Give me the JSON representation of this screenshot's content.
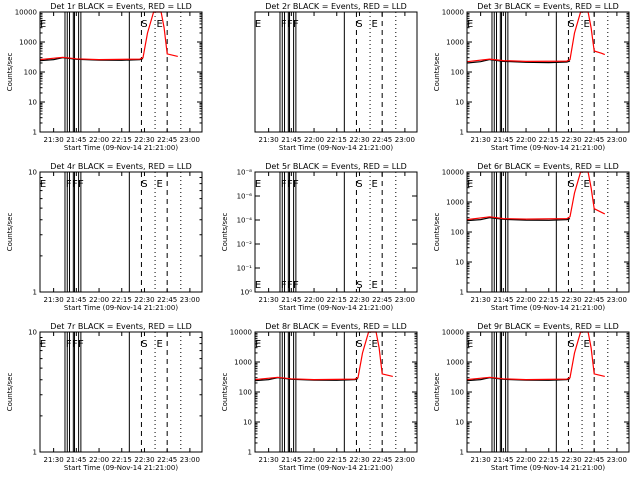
{
  "colors": {
    "events": "#000000",
    "lld": "#ff0000",
    "background": "#ffffff"
  },
  "xaxis": {
    "ticks": [
      "21:30",
      "21:45",
      "22:00",
      "22:15",
      "22:30",
      "22:45",
      "23:00"
    ],
    "tick_minutes": [
      1290,
      1305,
      1320,
      1335,
      1350,
      1365,
      1380
    ],
    "xlim_minutes": [
      1281,
      1388
    ],
    "label": "Start Time (09-Nov-14 21:21:00)"
  },
  "ylabel": "Counts/sec",
  "marker_lines": {
    "solid_minutes": [
      1297.5,
      1299,
      1300.5,
      1303,
      1303.8,
      1306.5,
      1308,
      1340
    ],
    "dashed_minutes": [
      1348,
      1365
    ],
    "dotted_minutes": [
      1357,
      1374
    ]
  },
  "flag_labels": {
    "six_letter": [
      {
        "text": "E",
        "minute": 1283
      },
      {
        "text": "F",
        "minute": 1300
      },
      {
        "text": "F",
        "minute": 1304
      },
      {
        "text": "F",
        "minute": 1308
      },
      {
        "text": "S",
        "minute": 1350
      },
      {
        "text": "E",
        "minute": 1360
      }
    ],
    "three_letter": [
      {
        "text": "E",
        "minute": 1283
      },
      {
        "text": "S",
        "minute": 1350
      },
      {
        "text": "E",
        "minute": 1360
      }
    ]
  },
  "chart_data": [
    {
      "type": "line",
      "title": "Det 1r BLACK = Events, RED = LLD",
      "layout": "log",
      "ylim": [
        1,
        10000
      ],
      "yticks": [
        {
          "v": 1,
          "t": "1"
        },
        {
          "v": 10,
          "t": "10"
        },
        {
          "v": 100,
          "t": "100"
        },
        {
          "v": 1000,
          "t": "1000"
        },
        {
          "v": 10000,
          "t": "10000"
        }
      ],
      "labels": "three_letter",
      "series": [
        {
          "name": "BLACK = Events",
          "x": [
            1281,
            1290,
            1296,
            1305,
            1320,
            1335,
            1347,
            1349
          ],
          "y": [
            240,
            260,
            300,
            265,
            250,
            245,
            260,
            280
          ]
        },
        {
          "name": "RED = LLD",
          "x": [
            1281,
            1296,
            1305,
            1320,
            1347,
            1349,
            1352,
            1356,
            1361,
            1363,
            1365,
            1370,
            1372
          ],
          "y": [
            260,
            310,
            275,
            260,
            270,
            300,
            2000,
            10000,
            10000,
            3000,
            400,
            350,
            330
          ]
        }
      ]
    },
    {
      "type": "line",
      "title": "Det 2r BLACK = Events, RED = LLD",
      "layout": "empty",
      "yticks": [],
      "labels": "six_letter",
      "series": []
    },
    {
      "type": "line",
      "title": "Det 3r BLACK = Events, RED = LLD",
      "layout": "log",
      "ylim": [
        1,
        10000
      ],
      "yticks": [
        {
          "v": 1,
          "t": "1"
        },
        {
          "v": 10,
          "t": "10"
        },
        {
          "v": 100,
          "t": "100"
        },
        {
          "v": 1000,
          "t": "1000"
        },
        {
          "v": 10000,
          "t": "10000"
        }
      ],
      "labels": "three_letter",
      "series": [
        {
          "name": "BLACK = Events",
          "x": [
            1281,
            1290,
            1296,
            1305,
            1320,
            1335,
            1347,
            1349
          ],
          "y": [
            200,
            220,
            260,
            225,
            210,
            205,
            215,
            230
          ]
        },
        {
          "name": "RED = LLD",
          "x": [
            1281,
            1296,
            1305,
            1320,
            1347,
            1349,
            1352,
            1356,
            1361,
            1363,
            1365,
            1370,
            1372
          ],
          "y": [
            220,
            270,
            240,
            225,
            230,
            260,
            2000,
            10000,
            10000,
            3000,
            500,
            420,
            380
          ]
        }
      ]
    },
    {
      "type": "line",
      "title": "Det 4r BLACK = Events, RED = LLD",
      "layout": "small",
      "ylim": [
        1,
        10
      ],
      "yticks": [
        {
          "v": 1,
          "t": "1"
        },
        {
          "v": 10,
          "t": "10"
        }
      ],
      "labels": "six_letter",
      "series": []
    },
    {
      "type": "line",
      "title": "Det 5r BLACK = Events, RED = LLD",
      "layout": "tiny",
      "yticks": [
        {
          "f": 0,
          "t": "10⁻⁸"
        },
        {
          "f": 0.2,
          "t": "10⁻⁶"
        },
        {
          "f": 0.4,
          "t": "10⁻⁴"
        },
        {
          "f": 0.6,
          "t": "10⁻²"
        },
        {
          "f": 0.8,
          "t": "10⁻¹"
        },
        {
          "f": 1,
          "t": "10⁰"
        }
      ],
      "labels": "six_letter_double",
      "series": []
    },
    {
      "type": "line",
      "title": "Det 6r BLACK = Events, RED = LLD",
      "layout": "log",
      "ylim": [
        1,
        10000
      ],
      "yticks": [
        {
          "v": 1,
          "t": "1"
        },
        {
          "v": 10,
          "t": "10"
        },
        {
          "v": 100,
          "t": "100"
        },
        {
          "v": 1000,
          "t": "1000"
        },
        {
          "v": 10000,
          "t": "10000"
        }
      ],
      "labels": "three_letter",
      "series": [
        {
          "name": "BLACK = Events",
          "x": [
            1281,
            1290,
            1296,
            1305,
            1320,
            1335,
            1347,
            1349
          ],
          "y": [
            240,
            260,
            300,
            265,
            250,
            245,
            260,
            280
          ]
        },
        {
          "name": "RED = LLD",
          "x": [
            1281,
            1296,
            1305,
            1320,
            1347,
            1349,
            1352,
            1356,
            1361,
            1363,
            1365,
            1370,
            1372
          ],
          "y": [
            260,
            320,
            280,
            270,
            280,
            320,
            2000,
            10000,
            10000,
            3000,
            600,
            450,
            400
          ]
        }
      ]
    },
    {
      "type": "line",
      "title": "Det 7r BLACK = Events, RED = LLD",
      "layout": "small",
      "ylim": [
        1,
        10
      ],
      "yticks": [
        {
          "v": 1,
          "t": "1"
        },
        {
          "v": 10,
          "t": "10"
        }
      ],
      "labels": "six_letter",
      "series": []
    },
    {
      "type": "line",
      "title": "Det 8r BLACK = Events, RED = LLD",
      "layout": "log",
      "ylim": [
        1,
        10000
      ],
      "yticks": [
        {
          "v": 1,
          "t": "1"
        },
        {
          "v": 10,
          "t": "10"
        },
        {
          "v": 100,
          "t": "100"
        },
        {
          "v": 1000,
          "t": "1000"
        },
        {
          "v": 10000,
          "t": "10000"
        }
      ],
      "labels": "three_letter",
      "series": [
        {
          "name": "BLACK = Events",
          "x": [
            1281,
            1290,
            1296,
            1305,
            1320,
            1335,
            1347,
            1349
          ],
          "y": [
            240,
            260,
            300,
            265,
            250,
            245,
            260,
            280
          ]
        },
        {
          "name": "RED = LLD",
          "x": [
            1281,
            1296,
            1305,
            1320,
            1347,
            1349,
            1352,
            1356,
            1361,
            1363,
            1365,
            1370,
            1372
          ],
          "y": [
            260,
            310,
            275,
            260,
            270,
            300,
            2000,
            10000,
            10000,
            3000,
            400,
            350,
            330
          ]
        }
      ]
    },
    {
      "type": "line",
      "title": "Det 9r BLACK = Events, RED = LLD",
      "layout": "log",
      "ylim": [
        1,
        10000
      ],
      "yticks": [
        {
          "v": 1,
          "t": "1"
        },
        {
          "v": 10,
          "t": "10"
        },
        {
          "v": 100,
          "t": "100"
        },
        {
          "v": 1000,
          "t": "1000"
        },
        {
          "v": 10000,
          "t": "10000"
        }
      ],
      "labels": "three_letter",
      "series": [
        {
          "name": "BLACK = Events",
          "x": [
            1281,
            1290,
            1296,
            1305,
            1320,
            1335,
            1347,
            1349
          ],
          "y": [
            240,
            260,
            300,
            265,
            250,
            245,
            260,
            280
          ]
        },
        {
          "name": "RED = LLD",
          "x": [
            1281,
            1296,
            1305,
            1320,
            1347,
            1349,
            1352,
            1356,
            1361,
            1363,
            1365,
            1370,
            1372
          ],
          "y": [
            260,
            310,
            275,
            260,
            270,
            300,
            2000,
            10000,
            10000,
            3000,
            400,
            350,
            330
          ]
        }
      ]
    }
  ]
}
